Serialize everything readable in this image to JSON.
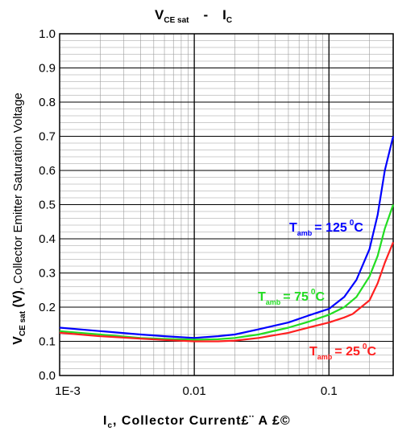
{
  "chart_data": {
    "type": "line",
    "title": {
      "main": "V",
      "sub": "CE sat",
      "sep": "-",
      "main2": "I",
      "sub2": "C"
    },
    "ylabel": {
      "main": "V",
      "sub": "CE sat",
      "bold_part": " (V)",
      "rest": ", Collector Emitter Saturation Voltage"
    },
    "xlabel": {
      "main": "I",
      "sub": "c",
      "rest": ",  Collector Current£¨ A £©"
    },
    "xscale": "log",
    "xlim": [
      0.001,
      0.3
    ],
    "ylim": [
      0.0,
      1.0
    ],
    "x_tick_labels": [
      {
        "value": 0.001,
        "label": "1E-3"
      },
      {
        "value": 0.01,
        "label": "0.01"
      },
      {
        "value": 0.1,
        "label": "0.1"
      }
    ],
    "y_tick_labels": [
      "0.0",
      "0.1",
      "0.2",
      "0.3",
      "0.4",
      "0.5",
      "0.6",
      "0.7",
      "0.8",
      "0.9",
      "1.0"
    ],
    "grid": true,
    "series": [
      {
        "name": "T amb = 125 °C",
        "label": {
          "t": "T",
          "sub": "amb",
          "eq": "= 125",
          "deg": "0",
          "unit": "C"
        },
        "color": "#0000ff",
        "points": [
          [
            0.001,
            0.14
          ],
          [
            0.002,
            0.13
          ],
          [
            0.004,
            0.12
          ],
          [
            0.006,
            0.115
          ],
          [
            0.01,
            0.11
          ],
          [
            0.015,
            0.115
          ],
          [
            0.02,
            0.12
          ],
          [
            0.03,
            0.135
          ],
          [
            0.05,
            0.155
          ],
          [
            0.07,
            0.175
          ],
          [
            0.1,
            0.195
          ],
          [
            0.13,
            0.23
          ],
          [
            0.16,
            0.28
          ],
          [
            0.2,
            0.37
          ],
          [
            0.23,
            0.47
          ],
          [
            0.26,
            0.6
          ],
          [
            0.3,
            0.7
          ]
        ]
      },
      {
        "name": "T amb = 75 °C",
        "label": {
          "t": "T",
          "sub": "amb",
          "eq": "= 75",
          "deg": "0",
          "unit": "C"
        },
        "color": "#22dd22",
        "points": [
          [
            0.001,
            0.13
          ],
          [
            0.002,
            0.12
          ],
          [
            0.004,
            0.11
          ],
          [
            0.006,
            0.107
          ],
          [
            0.01,
            0.105
          ],
          [
            0.015,
            0.106
          ],
          [
            0.02,
            0.11
          ],
          [
            0.03,
            0.12
          ],
          [
            0.05,
            0.14
          ],
          [
            0.07,
            0.157
          ],
          [
            0.1,
            0.178
          ],
          [
            0.13,
            0.2
          ],
          [
            0.16,
            0.23
          ],
          [
            0.2,
            0.29
          ],
          [
            0.23,
            0.35
          ],
          [
            0.26,
            0.43
          ],
          [
            0.3,
            0.5
          ]
        ]
      },
      {
        "name": "T amb = 25 °C",
        "label": {
          "t": "T",
          "sub": "amb",
          "eq": "= 25",
          "deg": "0",
          "unit": "C"
        },
        "color": "#ff2020",
        "points": [
          [
            0.001,
            0.125
          ],
          [
            0.002,
            0.115
          ],
          [
            0.004,
            0.108
          ],
          [
            0.006,
            0.104
          ],
          [
            0.01,
            0.1
          ],
          [
            0.015,
            0.1
          ],
          [
            0.02,
            0.102
          ],
          [
            0.03,
            0.11
          ],
          [
            0.05,
            0.125
          ],
          [
            0.07,
            0.14
          ],
          [
            0.1,
            0.155
          ],
          [
            0.13,
            0.17
          ],
          [
            0.15,
            0.18
          ],
          [
            0.2,
            0.22
          ],
          [
            0.23,
            0.27
          ],
          [
            0.26,
            0.33
          ],
          [
            0.3,
            0.39
          ]
        ]
      }
    ]
  }
}
